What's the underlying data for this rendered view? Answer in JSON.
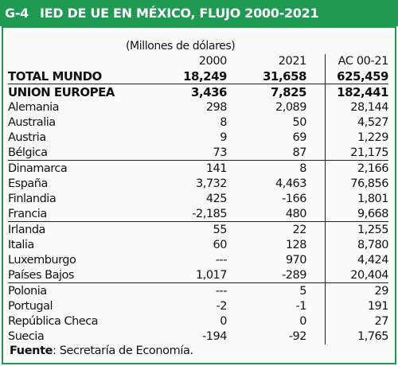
{
  "header": {
    "code": "G-4",
    "title": "IED DE UE EN MÉXICO, FLUJO 2000-2021"
  },
  "units": "(Millones de dólares)",
  "columns": [
    "2000",
    "2021",
    "AC 00-21"
  ],
  "total": {
    "name": "TOTAL MUNDO",
    "v2000": "18,249",
    "v2021": "31,658",
    "ac": "625,459"
  },
  "union": {
    "name": "UNION EUROPEA",
    "v2000": "3,436",
    "v2021": "7,825",
    "ac": "182,441"
  },
  "rows": [
    {
      "name": "Alemania",
      "v2000": "298",
      "v2021": "2,089",
      "ac": "28,144"
    },
    {
      "name": "Australia",
      "v2000": "8",
      "v2021": "50",
      "ac": "4,527"
    },
    {
      "name": "Austria",
      "v2000": "9",
      "v2021": "69",
      "ac": "1,229"
    },
    {
      "name": "Bélgica",
      "v2000": "73",
      "v2021": "87",
      "ac": "21,175"
    },
    {
      "name": "Dinamarca",
      "v2000": "141",
      "v2021": "8",
      "ac": "2,166"
    },
    {
      "name": "España",
      "v2000": "3,732",
      "v2021": "4,463",
      "ac": "76,856"
    },
    {
      "name": "Finlandia",
      "v2000": "425",
      "v2021": "-166",
      "ac": "1,801"
    },
    {
      "name": "Francia",
      "v2000": "-2,185",
      "v2021": "480",
      "ac": "9,668"
    },
    {
      "name": "Irlanda",
      "v2000": "55",
      "v2021": "22",
      "ac": "1,255"
    },
    {
      "name": "Italia",
      "v2000": "60",
      "v2021": "128",
      "ac": "8,780"
    },
    {
      "name": "Luxemburgo",
      "v2000": "---",
      "v2021": "970",
      "ac": "4,424"
    },
    {
      "name": "Países Bajos",
      "v2000": "1,017",
      "v2021": "-289",
      "ac": "20,404"
    },
    {
      "name": "Polonia",
      "v2000": "---",
      "v2021": "5",
      "ac": "29"
    },
    {
      "name": "Portugal",
      "v2000": "-2",
      "v2021": "-1",
      "ac": "191"
    },
    {
      "name": "República Checa",
      "v2000": "0",
      "v2021": "0",
      "ac": "27"
    },
    {
      "name": "Suecia",
      "v2000": "-194",
      "v2021": "-92",
      "ac": "1,765"
    }
  ],
  "source": {
    "label": "Fuente",
    "text": ": Secretaría de Economía."
  }
}
